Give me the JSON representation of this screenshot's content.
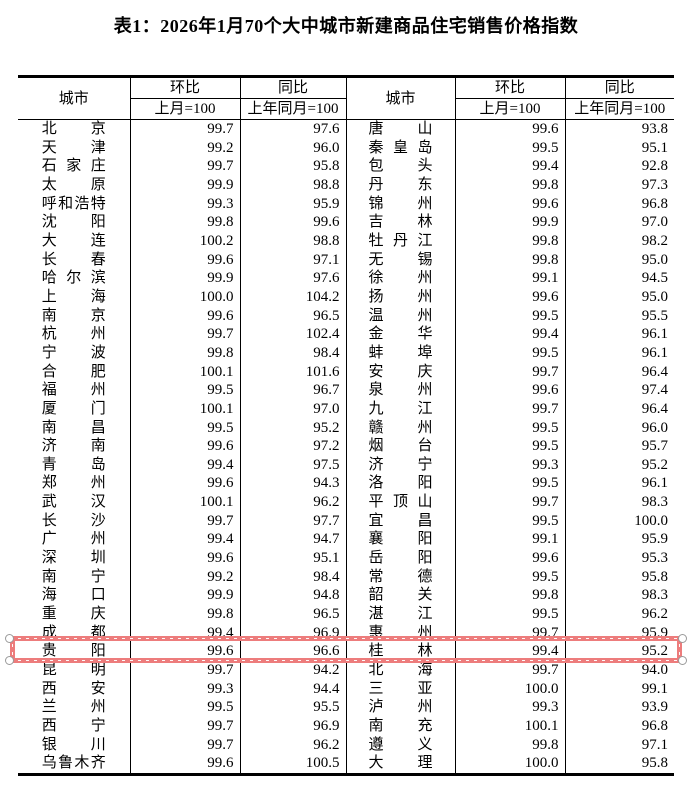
{
  "title": "表1：2026年1月70个大中城市新建商品住宅销售价格指数",
  "table": {
    "header": {
      "city": "城市",
      "mom": "环比",
      "mom_base": "上月=100",
      "yoy": "同比",
      "yoy_base": "上年同月=100"
    },
    "left_rows": [
      {
        "city": "北京",
        "mom": "99.7",
        "yoy": "97.6"
      },
      {
        "city": "天津",
        "mom": "99.2",
        "yoy": "96.0"
      },
      {
        "city": "石家庄",
        "mom": "99.7",
        "yoy": "95.8"
      },
      {
        "city": "太原",
        "mom": "99.9",
        "yoy": "98.8"
      },
      {
        "city": "呼和浩特",
        "mom": "99.3",
        "yoy": "95.9"
      },
      {
        "city": "沈阳",
        "mom": "99.8",
        "yoy": "99.6"
      },
      {
        "city": "大连",
        "mom": "100.2",
        "yoy": "98.8"
      },
      {
        "city": "长春",
        "mom": "99.6",
        "yoy": "97.1"
      },
      {
        "city": "哈尔滨",
        "mom": "99.9",
        "yoy": "97.6"
      },
      {
        "city": "上海",
        "mom": "100.0",
        "yoy": "104.2"
      },
      {
        "city": "南京",
        "mom": "99.6",
        "yoy": "96.5"
      },
      {
        "city": "杭州",
        "mom": "99.7",
        "yoy": "102.4"
      },
      {
        "city": "宁波",
        "mom": "99.8",
        "yoy": "98.4"
      },
      {
        "city": "合肥",
        "mom": "100.1",
        "yoy": "101.6"
      },
      {
        "city": "福州",
        "mom": "99.5",
        "yoy": "96.7"
      },
      {
        "city": "厦门",
        "mom": "100.1",
        "yoy": "97.0"
      },
      {
        "city": "南昌",
        "mom": "99.5",
        "yoy": "95.2"
      },
      {
        "city": "济南",
        "mom": "99.6",
        "yoy": "97.2"
      },
      {
        "city": "青岛",
        "mom": "99.4",
        "yoy": "97.5"
      },
      {
        "city": "郑州",
        "mom": "99.6",
        "yoy": "94.3"
      },
      {
        "city": "武汉",
        "mom": "100.1",
        "yoy": "96.2"
      },
      {
        "city": "长沙",
        "mom": "99.7",
        "yoy": "97.7"
      },
      {
        "city": "广州",
        "mom": "99.4",
        "yoy": "94.7"
      },
      {
        "city": "深圳",
        "mom": "99.6",
        "yoy": "95.1"
      },
      {
        "city": "南宁",
        "mom": "99.2",
        "yoy": "98.4"
      },
      {
        "city": "海口",
        "mom": "99.9",
        "yoy": "94.8"
      },
      {
        "city": "重庆",
        "mom": "99.8",
        "yoy": "96.5"
      },
      {
        "city": "成都",
        "mom": "99.4",
        "yoy": "96.9"
      },
      {
        "city": "贵阳",
        "mom": "99.6",
        "yoy": "96.6"
      },
      {
        "city": "昆明",
        "mom": "99.7",
        "yoy": "94.2"
      },
      {
        "city": "西安",
        "mom": "99.3",
        "yoy": "94.4"
      },
      {
        "city": "兰州",
        "mom": "99.5",
        "yoy": "95.5"
      },
      {
        "city": "西宁",
        "mom": "99.7",
        "yoy": "96.9"
      },
      {
        "city": "银川",
        "mom": "99.7",
        "yoy": "96.2"
      },
      {
        "city": "乌鲁木齐",
        "mom": "99.6",
        "yoy": "100.5"
      }
    ],
    "right_rows": [
      {
        "city": "唐山",
        "mom": "99.6",
        "yoy": "93.8"
      },
      {
        "city": "秦皇岛",
        "mom": "99.5",
        "yoy": "95.1"
      },
      {
        "city": "包头",
        "mom": "99.4",
        "yoy": "92.8"
      },
      {
        "city": "丹东",
        "mom": "99.8",
        "yoy": "97.3"
      },
      {
        "city": "锦州",
        "mom": "99.6",
        "yoy": "96.8"
      },
      {
        "city": "吉林",
        "mom": "99.9",
        "yoy": "97.0"
      },
      {
        "city": "牡丹江",
        "mom": "99.8",
        "yoy": "98.2"
      },
      {
        "city": "无锡",
        "mom": "99.8",
        "yoy": "95.0"
      },
      {
        "city": "徐州",
        "mom": "99.1",
        "yoy": "94.5"
      },
      {
        "city": "扬州",
        "mom": "99.6",
        "yoy": "95.0"
      },
      {
        "city": "温州",
        "mom": "99.5",
        "yoy": "95.5"
      },
      {
        "city": "金华",
        "mom": "99.4",
        "yoy": "96.1"
      },
      {
        "city": "蚌埠",
        "mom": "99.5",
        "yoy": "96.1"
      },
      {
        "city": "安庆",
        "mom": "99.7",
        "yoy": "96.4"
      },
      {
        "city": "泉州",
        "mom": "99.6",
        "yoy": "97.4"
      },
      {
        "city": "九江",
        "mom": "99.7",
        "yoy": "96.4"
      },
      {
        "city": "赣州",
        "mom": "99.5",
        "yoy": "96.0"
      },
      {
        "city": "烟台",
        "mom": "99.5",
        "yoy": "95.7"
      },
      {
        "city": "济宁",
        "mom": "99.3",
        "yoy": "95.2"
      },
      {
        "city": "洛阳",
        "mom": "99.5",
        "yoy": "96.1"
      },
      {
        "city": "平顶山",
        "mom": "99.7",
        "yoy": "98.3"
      },
      {
        "city": "宜昌",
        "mom": "99.5",
        "yoy": "100.0"
      },
      {
        "city": "襄阳",
        "mom": "99.1",
        "yoy": "95.9"
      },
      {
        "city": "岳阳",
        "mom": "99.6",
        "yoy": "95.3"
      },
      {
        "city": "常德",
        "mom": "99.5",
        "yoy": "95.8"
      },
      {
        "city": "韶关",
        "mom": "99.8",
        "yoy": "98.3"
      },
      {
        "city": "湛江",
        "mom": "99.5",
        "yoy": "96.2"
      },
      {
        "city": "惠州",
        "mom": "99.7",
        "yoy": "95.9"
      },
      {
        "city": "桂林",
        "mom": "99.4",
        "yoy": "95.2"
      },
      {
        "city": "北海",
        "mom": "99.7",
        "yoy": "94.0"
      },
      {
        "city": "三亚",
        "mom": "100.0",
        "yoy": "99.1"
      },
      {
        "city": "泸州",
        "mom": "99.3",
        "yoy": "93.9"
      },
      {
        "city": "南充",
        "mom": "100.1",
        "yoy": "96.8"
      },
      {
        "city": "遵义",
        "mom": "99.8",
        "yoy": "97.1"
      },
      {
        "city": "大理",
        "mom": "100.0",
        "yoy": "95.8"
      }
    ]
  },
  "highlight": {
    "row_index": 28,
    "left_city": "贵阳",
    "right_city": "桂林",
    "box_color": "#ed7c7c",
    "handle_fill": "#ffffff",
    "handle_border": "#9a9a9a"
  },
  "colors": {
    "table_border": "#000000",
    "text": "#000000",
    "background": "#ffffff"
  }
}
